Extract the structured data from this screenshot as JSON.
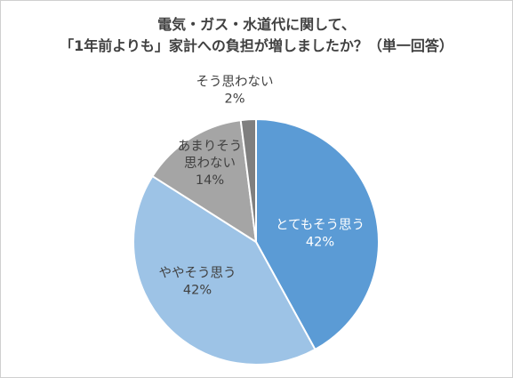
{
  "chart_data": {
    "type": "pie",
    "title_lines": [
      "電気・ガス・水道代に関して、",
      "「1年前よりも」家計への負担が増しましたか？（単一回答）"
    ],
    "slices": [
      {
        "label_lines": [
          "とてもそう思う"
        ],
        "percent_label": "42%",
        "value": 42,
        "color": "#5b9bd5"
      },
      {
        "label_lines": [
          "ややそう思う"
        ],
        "percent_label": "42%",
        "value": 42,
        "color": "#9dc3e6"
      },
      {
        "label_lines": [
          "あまりそう",
          "思わない"
        ],
        "percent_label": "14%",
        "value": 14,
        "color": "#a5a5a5"
      },
      {
        "label_lines": [
          "そう思わない"
        ],
        "percent_label": "2%",
        "value": 2,
        "color": "#7f7f7f"
      }
    ]
  }
}
